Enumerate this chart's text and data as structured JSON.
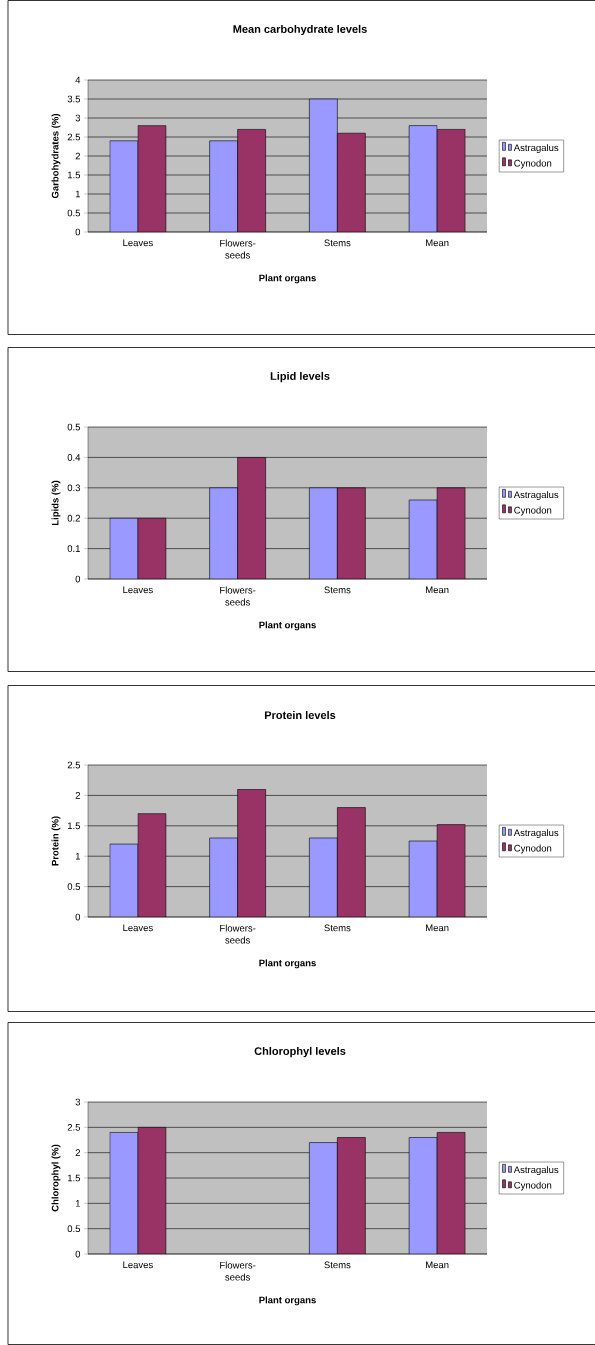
{
  "chart_data": [
    {
      "type": "bar",
      "title": "Mean carbohydrate levels",
      "xlabel": "Plant organs",
      "ylabel": "Garbohydrates (%)",
      "categories": [
        "Leaves",
        "Flowers-seeds",
        "Stems",
        "Mean"
      ],
      "series": [
        {
          "name": "Astragalus",
          "color": "#9999ff",
          "values": [
            2.4,
            2.4,
            3.5,
            2.8
          ]
        },
        {
          "name": "Cynodon",
          "color": "#993366",
          "values": [
            2.8,
            2.7,
            2.6,
            2.7
          ]
        }
      ],
      "ylim": [
        0,
        4
      ],
      "yticks": [
        0,
        0.5,
        1,
        1.5,
        2,
        2.5,
        3,
        3.5,
        4
      ],
      "grid": "y",
      "legend": "right"
    },
    {
      "type": "bar",
      "title": "Lipid levels",
      "xlabel": "Plant organs",
      "ylabel": "Lipids (%)",
      "categories": [
        "Leaves",
        "Flowers-seeds",
        "Stems",
        "Mean"
      ],
      "series": [
        {
          "name": "Astragalus",
          "color": "#9999ff",
          "values": [
            0.2,
            0.3,
            0.3,
            0.26
          ]
        },
        {
          "name": "Cynodon",
          "color": "#993366",
          "values": [
            0.2,
            0.4,
            0.3,
            0.3
          ]
        }
      ],
      "ylim": [
        0,
        0.5
      ],
      "yticks": [
        0,
        0.1,
        0.2,
        0.3,
        0.4,
        0.5
      ],
      "grid": "y",
      "legend": "right"
    },
    {
      "type": "bar",
      "title": "Protein levels",
      "xlabel": "Plant organs",
      "ylabel": "Protein (%)",
      "categories": [
        "Leaves",
        "Flowers-seeds",
        "Stems",
        "Mean"
      ],
      "series": [
        {
          "name": "Astragalus",
          "color": "#9999ff",
          "values": [
            1.2,
            1.3,
            1.3,
            1.25
          ]
        },
        {
          "name": "Cynodon",
          "color": "#993366",
          "values": [
            1.7,
            2.1,
            1.8,
            1.52
          ]
        }
      ],
      "ylim": [
        0,
        2.5
      ],
      "yticks": [
        0,
        0.5,
        1,
        1.5,
        2,
        2.5
      ],
      "grid": "y",
      "legend": "right"
    },
    {
      "type": "bar",
      "title": "Chlorophyl levels",
      "xlabel": "Plant organs",
      "ylabel": "Chlorophyl (%)",
      "categories": [
        "Leaves",
        "Flowers-seeds",
        "Stems",
        "Mean"
      ],
      "series": [
        {
          "name": "Astragalus",
          "color": "#9999ff",
          "values": [
            2.4,
            null,
            2.2,
            2.3
          ]
        },
        {
          "name": "Cynodon",
          "color": "#993366",
          "values": [
            2.5,
            null,
            2.3,
            2.4
          ]
        }
      ],
      "ylim": [
        0,
        3
      ],
      "yticks": [
        0,
        0.5,
        1,
        1.5,
        2,
        2.5,
        3
      ],
      "grid": "y",
      "legend": "right"
    }
  ]
}
